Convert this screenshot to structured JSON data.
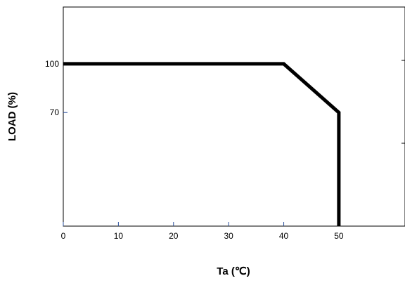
{
  "chart_data": {
    "type": "line",
    "xlabel": "Ta (℃)",
    "ylabel": "LOAD (%)",
    "xlim": [
      0,
      62
    ],
    "ylim": [
      0,
      135
    ],
    "x_ticks": [
      0,
      10,
      20,
      30,
      40,
      50
    ],
    "y_ticks": [
      70,
      100
    ],
    "grid": false,
    "series": [
      {
        "x": [
          0,
          40,
          50,
          50
        ],
        "y": [
          100,
          100,
          70,
          0
        ],
        "color": "#000000"
      }
    ],
    "colors": {
      "line": "#000000",
      "axis": "#000000",
      "tick": "#2a4f9c"
    }
  }
}
